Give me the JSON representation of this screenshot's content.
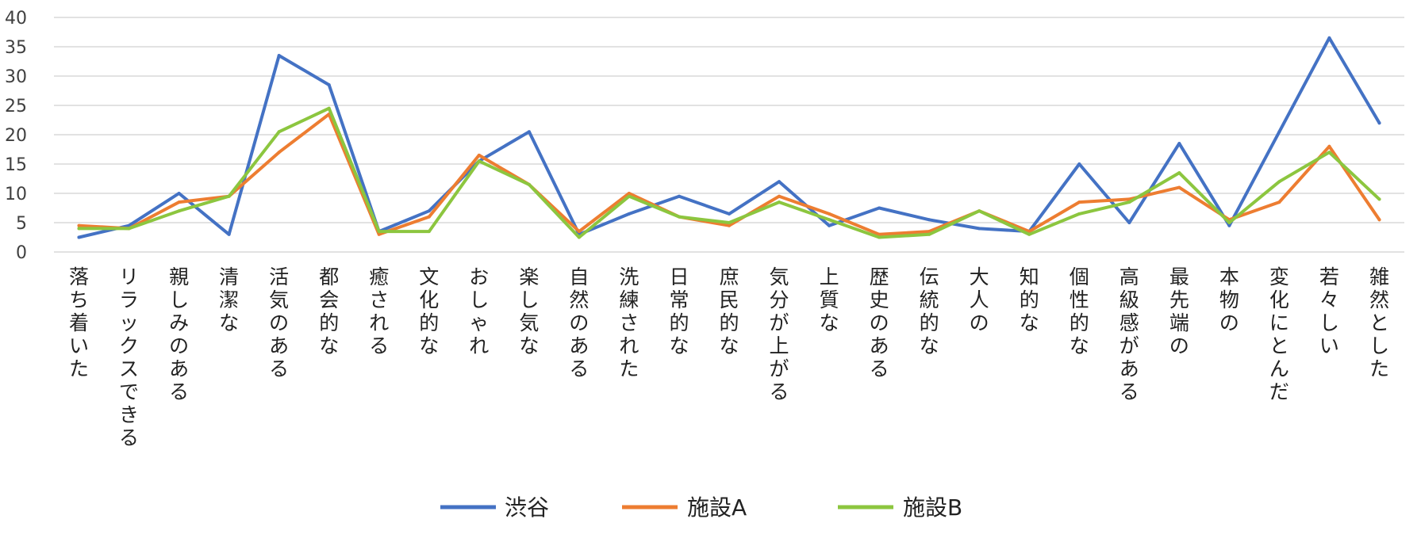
{
  "chart_data": {
    "type": "line",
    "ylim": [
      0,
      40
    ],
    "y_ticks": [
      "0",
      "5",
      "10",
      "15",
      "20",
      "25",
      "30",
      "35",
      "40"
    ],
    "grid": true,
    "legend_position": "bottom",
    "categories": [
      "落ち着いた",
      "リラックスできる",
      "親しみのある",
      "清潔な",
      "活気のある",
      "都会的な",
      "癒される",
      "文化的な",
      "おしゃれ",
      "楽し気な",
      "自然のある",
      "洗練された",
      "日常的な",
      "庶民的な",
      "気分が上がる",
      "上質な",
      "歴史のある",
      "伝統的な",
      "大人の",
      "知的な",
      "個性的な",
      "高級感がある",
      "最先端の",
      "本物の",
      "変化にとんだ",
      "若々しい",
      "雑然とした"
    ],
    "series": [
      {
        "name": "渋谷",
        "color": "#4472C4",
        "values": [
          2.5,
          4.5,
          10,
          3,
          33.5,
          28.5,
          3.5,
          7,
          15.5,
          20.5,
          3,
          6.5,
          9.5,
          6.5,
          12,
          4.5,
          7.5,
          5.5,
          4,
          3.5,
          15,
          5,
          18.5,
          4.5,
          20.5,
          36.5,
          22
        ]
      },
      {
        "name": "施設A",
        "color": "#ED7D31",
        "values": [
          4.5,
          4,
          8.5,
          9.5,
          17,
          23.5,
          3,
          6,
          16.5,
          11.5,
          3.5,
          10,
          6,
          4.5,
          9.5,
          6.5,
          3,
          3.5,
          7,
          3.5,
          8.5,
          9,
          11,
          5.5,
          8.5,
          18,
          5.5
        ]
      },
      {
        "name": "施設B",
        "color": "#8CC63F",
        "values": [
          4,
          4,
          7,
          9.5,
          20.5,
          24.5,
          3.5,
          3.5,
          15.5,
          11.5,
          2.5,
          9.5,
          6,
          5,
          8.5,
          5.5,
          2.5,
          3,
          7,
          3,
          6.5,
          8.5,
          13.5,
          5,
          12,
          17,
          9
        ]
      }
    ]
  }
}
